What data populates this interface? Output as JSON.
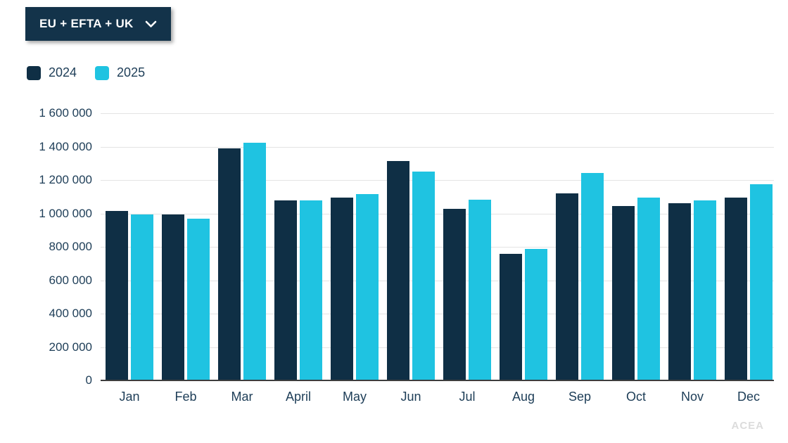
{
  "filter": {
    "label": "EU + EFTA + UK"
  },
  "legend": {
    "items": [
      {
        "label": "2024",
        "color": "#0f2f45"
      },
      {
        "label": "2025",
        "color": "#1fc3e1"
      }
    ]
  },
  "watermark": {
    "text": "ACEA"
  },
  "colors": {
    "series_2024": "#0f2f45",
    "series_2025": "#1fc3e1",
    "button_bg": "#13334a",
    "text": "#1d3d57",
    "gridline": "#e4e4e4",
    "axis_line": "#3d3d3d",
    "watermark": "#dcdcdc"
  },
  "chart_data": {
    "type": "bar",
    "title": "",
    "xlabel": "",
    "ylabel": "",
    "categories": [
      "Jan",
      "Feb",
      "Mar",
      "April",
      "May",
      "Jun",
      "Jul",
      "Aug",
      "Sep",
      "Oct",
      "Nov",
      "Dec"
    ],
    "series": [
      {
        "name": "2024",
        "color": "#0f2f45",
        "values": [
          1010000,
          990000,
          1385000,
          1075000,
          1090000,
          1310000,
          1025000,
          755000,
          1115000,
          1040000,
          1055000,
          1090000
        ]
      },
      {
        "name": "2025",
        "color": "#1fc3e1",
        "values": [
          990000,
          965000,
          1420000,
          1075000,
          1110000,
          1245000,
          1080000,
          785000,
          1240000,
          1090000,
          1075000,
          1170000
        ]
      }
    ],
    "ylim": [
      0,
      1600000
    ],
    "ytick_step": 200000,
    "ytick_labels": [
      "1 600 000",
      "1 400 000",
      "1 200 000",
      "1 000 000",
      "800 000",
      "600 000",
      "400 000",
      "200 000",
      "0"
    ],
    "grid": true,
    "legend_position": "top-left"
  }
}
